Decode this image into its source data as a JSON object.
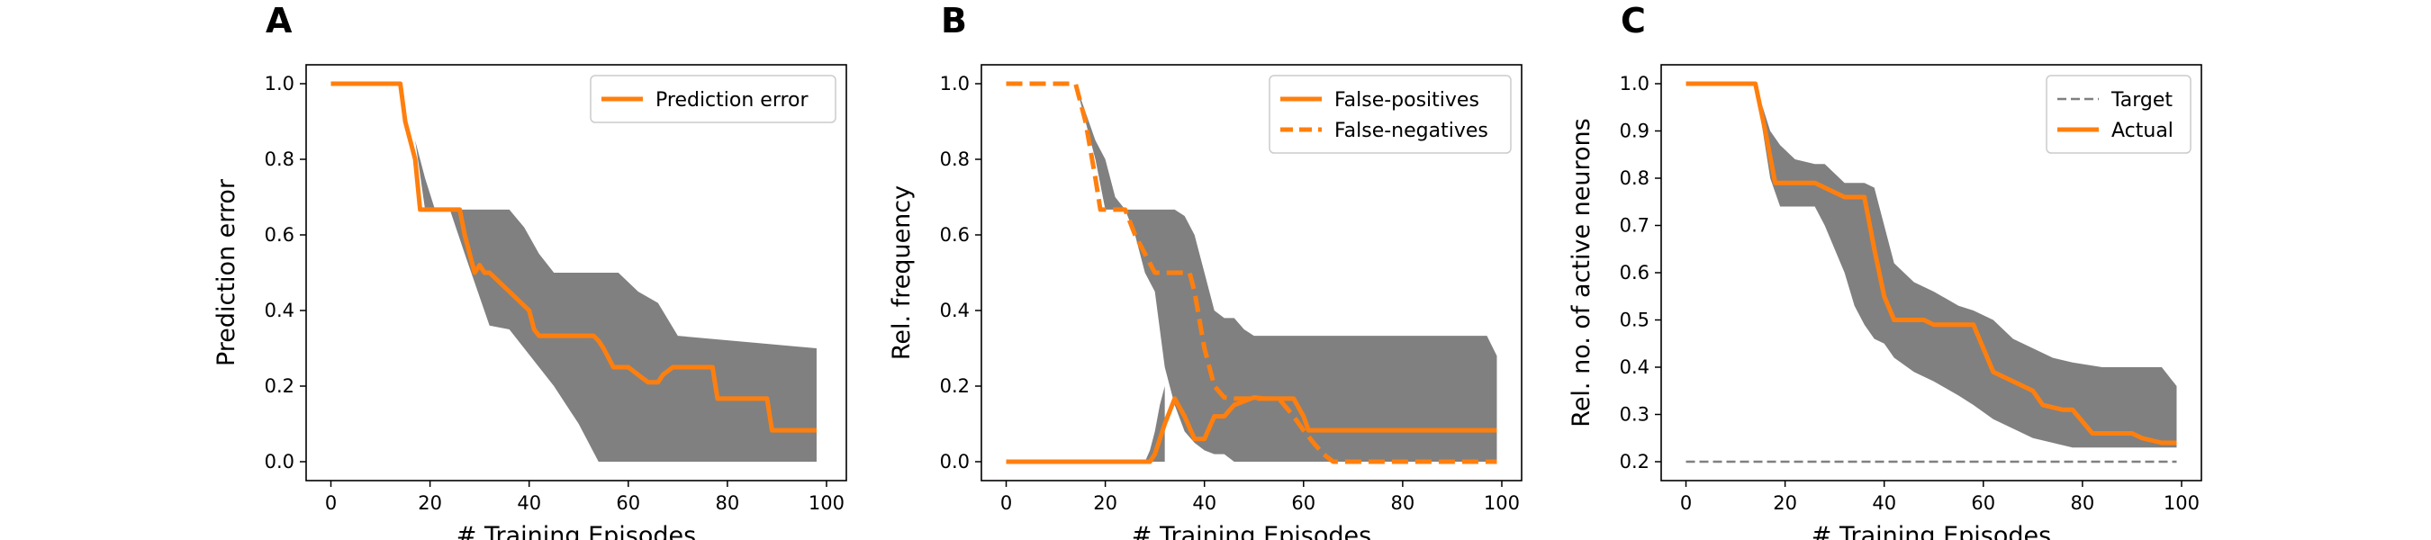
{
  "chart_data": [
    {
      "panel_label": "A",
      "type": "line",
      "xlabel": "# Training Episodes",
      "ylabel": "Prediction error",
      "xlim": [
        -5,
        104
      ],
      "ylim": [
        -0.05,
        1.05
      ],
      "xticks": [
        0,
        20,
        40,
        60,
        80,
        100
      ],
      "yticks": [
        0.0,
        0.2,
        0.4,
        0.6,
        0.8,
        1.0
      ],
      "legend_position": "upper right",
      "band_color": "#808080",
      "series": [
        {
          "name": "Prediction error",
          "color": "#ff7f0e",
          "style": "solid",
          "x": [
            0,
            14,
            15,
            17,
            18,
            26,
            27,
            28,
            29,
            30,
            31,
            32,
            40,
            41,
            42,
            53,
            54,
            55,
            57,
            60,
            63,
            64,
            66,
            67,
            68,
            69,
            70,
            77,
            78,
            88,
            89,
            97,
            98
          ],
          "y": [
            1.0,
            1.0,
            0.9,
            0.8,
            0.667,
            0.667,
            0.6,
            0.55,
            0.5,
            0.52,
            0.5,
            0.5,
            0.4,
            0.35,
            0.333,
            0.333,
            0.32,
            0.3,
            0.25,
            0.25,
            0.22,
            0.21,
            0.21,
            0.23,
            0.24,
            0.25,
            0.25,
            0.25,
            0.167,
            0.167,
            0.083,
            0.083,
            0.083
          ]
        }
      ],
      "bands": [
        {
          "x": [
            0,
            14,
            17,
            19,
            21,
            24,
            27,
            32,
            36,
            39,
            42,
            45,
            50,
            54,
            58,
            62,
            66,
            70,
            98
          ],
          "upper": [
            1.0,
            1.0,
            0.85,
            0.75,
            0.667,
            0.667,
            0.667,
            0.667,
            0.667,
            0.62,
            0.55,
            0.5,
            0.5,
            0.5,
            0.5,
            0.45,
            0.42,
            0.333,
            0.3
          ],
          "lower": [
            1.0,
            1.0,
            0.85,
            0.667,
            0.667,
            0.667,
            0.55,
            0.36,
            0.35,
            0.3,
            0.25,
            0.2,
            0.1,
            0.0,
            0.0,
            0.0,
            0.0,
            0.0,
            0.0
          ]
        }
      ]
    },
    {
      "panel_label": "B",
      "type": "line",
      "xlabel": "# Training Episodes",
      "ylabel": "Rel. frequency",
      "xlim": [
        -5,
        104
      ],
      "ylim": [
        -0.05,
        1.05
      ],
      "xticks": [
        0,
        20,
        40,
        60,
        80,
        100
      ],
      "yticks": [
        0.0,
        0.2,
        0.4,
        0.6,
        0.8,
        1.0
      ],
      "legend_position": "upper right",
      "band_color": "#808080",
      "series": [
        {
          "name": "False-positives",
          "color": "#ff7f0e",
          "style": "solid",
          "x": [
            0,
            29,
            30,
            32,
            34,
            36,
            38,
            40,
            42,
            44,
            46,
            50,
            52,
            55,
            58,
            60,
            61,
            62,
            99
          ],
          "y": [
            0.0,
            0.0,
            0.02,
            0.1,
            0.167,
            0.12,
            0.06,
            0.06,
            0.12,
            0.12,
            0.15,
            0.17,
            0.167,
            0.167,
            0.167,
            0.12,
            0.083,
            0.083,
            0.083
          ]
        },
        {
          "name": "False-negatives",
          "color": "#ff7f0e",
          "style": "dashed",
          "x": [
            0,
            14,
            16,
            18,
            19,
            24,
            26,
            28,
            30,
            31,
            33,
            37,
            38,
            40,
            42,
            44,
            46,
            55,
            58,
            60,
            62,
            64,
            66,
            99
          ],
          "y": [
            1.0,
            1.0,
            0.9,
            0.75,
            0.667,
            0.667,
            0.6,
            0.55,
            0.5,
            0.5,
            0.5,
            0.5,
            0.45,
            0.3,
            0.2,
            0.17,
            0.167,
            0.167,
            0.12,
            0.083,
            0.05,
            0.02,
            0.0,
            0.0
          ]
        }
      ],
      "bands": [
        {
          "x": [
            0,
            14,
            18,
            20,
            22,
            24,
            26,
            28,
            30,
            32,
            34,
            36,
            38,
            40,
            42,
            44,
            46,
            48,
            50,
            55,
            60,
            62,
            65,
            97,
            99
          ],
          "upper": [
            1.0,
            1.0,
            0.85,
            0.8,
            0.7,
            0.667,
            0.667,
            0.667,
            0.667,
            0.667,
            0.667,
            0.65,
            0.6,
            0.5,
            0.4,
            0.38,
            0.38,
            0.35,
            0.333,
            0.333,
            0.333,
            0.333,
            0.333,
            0.333,
            0.28
          ],
          "lower": [
            1.0,
            1.0,
            0.8,
            0.667,
            0.667,
            0.667,
            0.6,
            0.5,
            0.45,
            0.25,
            0.15,
            0.08,
            0.05,
            0.03,
            0.02,
            0.02,
            0.0,
            0.0,
            0.0,
            0.0,
            0.0,
            0.0,
            0.0,
            0.0,
            0.0
          ]
        },
        {
          "x": [
            28,
            29,
            30,
            31,
            32
          ],
          "upper": [
            0.0,
            0.03,
            0.08,
            0.15,
            0.2
          ],
          "lower": [
            0.0,
            0.0,
            0.0,
            0.0,
            0.0
          ]
        }
      ]
    },
    {
      "panel_label": "C",
      "type": "line",
      "xlabel": "# Training Episodes",
      "ylabel": "Rel. no. of active neurons",
      "xlim": [
        -5,
        104
      ],
      "ylim": [
        0.16,
        1.04
      ],
      "xticks": [
        0,
        20,
        40,
        60,
        80,
        100
      ],
      "yticks": [
        0.2,
        0.3,
        0.4,
        0.5,
        0.6,
        0.7,
        0.8,
        0.9,
        1.0
      ],
      "legend_position": "upper right",
      "band_color": "#808080",
      "series": [
        {
          "name": "Target",
          "color": "#808080",
          "style": "dashed",
          "x": [
            0,
            99
          ],
          "y": [
            0.2,
            0.2
          ]
        },
        {
          "name": "Actual",
          "color": "#ff7f0e",
          "style": "solid",
          "x": [
            0,
            14,
            16,
            18,
            20,
            26,
            28,
            30,
            32,
            36,
            38,
            40,
            42,
            48,
            50,
            55,
            58,
            60,
            62,
            66,
            68,
            70,
            72,
            76,
            78,
            82,
            84,
            90,
            92,
            96,
            99
          ],
          "y": [
            1.0,
            1.0,
            0.9,
            0.79,
            0.79,
            0.79,
            0.78,
            0.77,
            0.76,
            0.76,
            0.65,
            0.55,
            0.5,
            0.5,
            0.49,
            0.49,
            0.49,
            0.44,
            0.39,
            0.37,
            0.36,
            0.35,
            0.32,
            0.31,
            0.31,
            0.26,
            0.26,
            0.26,
            0.25,
            0.24,
            0.24
          ]
        }
      ],
      "bands": [
        {
          "x": [
            0,
            14,
            17,
            19,
            22,
            26,
            28,
            30,
            32,
            34,
            36,
            38,
            40,
            42,
            46,
            50,
            55,
            58,
            62,
            66,
            70,
            74,
            78,
            84,
            90,
            96,
            99
          ],
          "upper": [
            1.0,
            1.0,
            0.9,
            0.87,
            0.84,
            0.83,
            0.83,
            0.81,
            0.79,
            0.79,
            0.79,
            0.78,
            0.7,
            0.62,
            0.58,
            0.56,
            0.53,
            0.52,
            0.5,
            0.46,
            0.44,
            0.42,
            0.41,
            0.4,
            0.4,
            0.4,
            0.36
          ],
          "lower": [
            1.0,
            1.0,
            0.8,
            0.74,
            0.74,
            0.74,
            0.7,
            0.65,
            0.6,
            0.53,
            0.49,
            0.46,
            0.45,
            0.42,
            0.39,
            0.37,
            0.34,
            0.32,
            0.29,
            0.27,
            0.25,
            0.24,
            0.23,
            0.23,
            0.23,
            0.23,
            0.23
          ]
        }
      ]
    }
  ]
}
